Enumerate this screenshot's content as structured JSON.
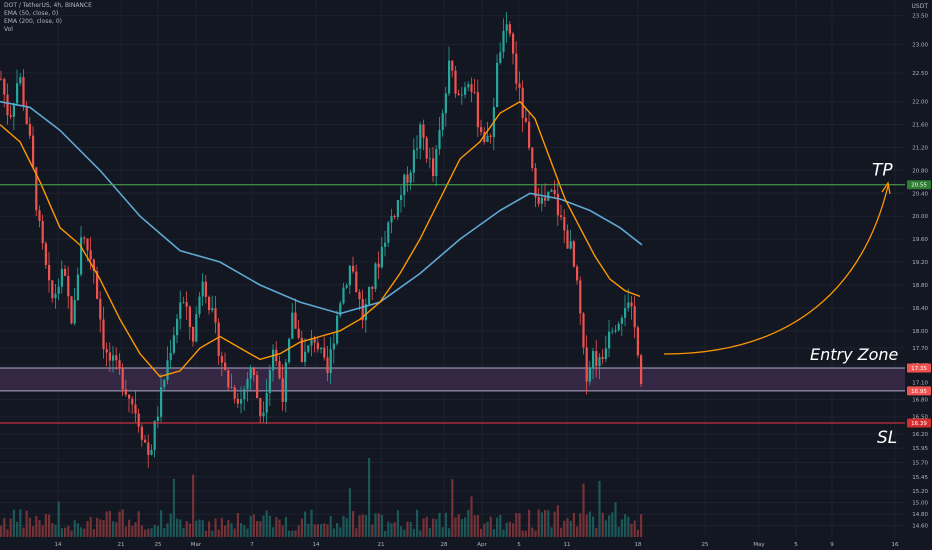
{
  "legend": {
    "symbol": "DOT / TetherUS, 4h, BINANCE",
    "ema50": "EMA (50, close, 0)",
    "ema200": "EMA (200, close, 0)",
    "vol": "Vol"
  },
  "currency": "USDT",
  "colors": {
    "background": "#131722",
    "up": "#26a69a",
    "down": "#ef5350",
    "ema50": "#ff9800",
    "ema200": "#5fa8d3",
    "tp_line": "#4caf50",
    "sl_line": "#f23645",
    "zone_fill": "#3b2a4a",
    "arrow": "#ff9800",
    "axis_text": "#b2b5be"
  },
  "chart_data": {
    "type": "candlestick",
    "y_range": [
      14.4,
      23.6
    ],
    "y_ticks": [
      "23.50",
      "23.00",
      "22.50",
      "22.00",
      "21.60",
      "21.20",
      "20.80",
      "20.40",
      "20.00",
      "19.60",
      "19.20",
      "18.80",
      "18.40",
      "18.00",
      "17.70",
      "17.40",
      "17.10",
      "16.80",
      "16.50",
      "16.20",
      "15.95",
      "15.70",
      "15.45",
      "15.20",
      "15.00",
      "14.80",
      "14.60"
    ],
    "x_ticks": [
      "14",
      "21",
      "25",
      "Mar",
      "7",
      "14",
      "21",
      "28",
      "Apr",
      "5",
      "11",
      "18",
      "25",
      "May",
      "5",
      "9",
      "16"
    ],
    "levels": {
      "tp": {
        "label": "TP",
        "value": 20.55,
        "tag": "20.55"
      },
      "entry_top": {
        "value": 17.35,
        "tag": "17.35"
      },
      "entry_bottom": {
        "value": 16.95,
        "tag": "16.95"
      },
      "sl": {
        "label": "SL",
        "value": 16.39,
        "tag": "16.39"
      }
    },
    "entry_zone_label": "Entry Zone",
    "price_path": [
      [
        0,
        22.4
      ],
      [
        8,
        21.7
      ],
      [
        18,
        22.5
      ],
      [
        28,
        21.4
      ],
      [
        38,
        19.8
      ],
      [
        50,
        18.5
      ],
      [
        62,
        19.0
      ],
      [
        72,
        18.1
      ],
      [
        80,
        19.7
      ],
      [
        92,
        19.2
      ],
      [
        104,
        17.6
      ],
      [
        120,
        17.2
      ],
      [
        135,
        16.6
      ],
      [
        148,
        15.8
      ],
      [
        158,
        16.7
      ],
      [
        168,
        17.6
      ],
      [
        180,
        18.6
      ],
      [
        192,
        17.9
      ],
      [
        202,
        19.0
      ],
      [
        214,
        18.0
      ],
      [
        226,
        17.1
      ],
      [
        240,
        16.8
      ],
      [
        250,
        17.4
      ],
      [
        260,
        16.5
      ],
      [
        272,
        17.7
      ],
      [
        282,
        16.9
      ],
      [
        292,
        18.3
      ],
      [
        302,
        17.5
      ],
      [
        314,
        17.9
      ],
      [
        326,
        17.2
      ],
      [
        338,
        18.5
      ],
      [
        350,
        19.2
      ],
      [
        362,
        18.2
      ],
      [
        374,
        19.0
      ],
      [
        386,
        19.8
      ],
      [
        398,
        20.3
      ],
      [
        410,
        20.9
      ],
      [
        420,
        21.5
      ],
      [
        432,
        20.7
      ],
      [
        442,
        21.8
      ],
      [
        448,
        22.6
      ],
      [
        458,
        22.1
      ],
      [
        468,
        22.5
      ],
      [
        478,
        21.6
      ],
      [
        488,
        21.2
      ],
      [
        498,
        22.9
      ],
      [
        508,
        23.3
      ],
      [
        516,
        22.3
      ],
      [
        524,
        21.6
      ],
      [
        532,
        20.6
      ],
      [
        542,
        20.2
      ],
      [
        552,
        20.4
      ],
      [
        560,
        19.9
      ],
      [
        570,
        19.4
      ],
      [
        578,
        18.5
      ],
      [
        584,
        17.2
      ],
      [
        592,
        17.6
      ],
      [
        600,
        17.4
      ],
      [
        608,
        18.1
      ],
      [
        616,
        18.2
      ],
      [
        624,
        18.5
      ],
      [
        632,
        18.2
      ],
      [
        638,
        17.6
      ],
      [
        642,
        16.8
      ]
    ],
    "ema50_path": [
      [
        0,
        21.6
      ],
      [
        20,
        21.3
      ],
      [
        40,
        20.6
      ],
      [
        60,
        19.8
      ],
      [
        80,
        19.5
      ],
      [
        100,
        18.9
      ],
      [
        120,
        18.2
      ],
      [
        140,
        17.6
      ],
      [
        160,
        17.2
      ],
      [
        180,
        17.3
      ],
      [
        200,
        17.7
      ],
      [
        220,
        17.9
      ],
      [
        240,
        17.7
      ],
      [
        260,
        17.5
      ],
      [
        280,
        17.6
      ],
      [
        300,
        17.8
      ],
      [
        320,
        17.9
      ],
      [
        340,
        18.0
      ],
      [
        360,
        18.2
      ],
      [
        380,
        18.5
      ],
      [
        400,
        19.0
      ],
      [
        420,
        19.6
      ],
      [
        440,
        20.3
      ],
      [
        460,
        21.0
      ],
      [
        480,
        21.3
      ],
      [
        500,
        21.8
      ],
      [
        520,
        22.0
      ],
      [
        535,
        21.7
      ],
      [
        550,
        21.0
      ],
      [
        565,
        20.3
      ],
      [
        580,
        19.8
      ],
      [
        595,
        19.3
      ],
      [
        610,
        18.9
      ],
      [
        625,
        18.7
      ],
      [
        640,
        18.6
      ]
    ],
    "ema200_path": [
      [
        0,
        22.0
      ],
      [
        30,
        21.9
      ],
      [
        60,
        21.5
      ],
      [
        100,
        20.8
      ],
      [
        140,
        20.0
      ],
      [
        180,
        19.4
      ],
      [
        220,
        19.2
      ],
      [
        260,
        18.8
      ],
      [
        300,
        18.5
      ],
      [
        340,
        18.3
      ],
      [
        380,
        18.5
      ],
      [
        420,
        19.0
      ],
      [
        460,
        19.6
      ],
      [
        500,
        20.1
      ],
      [
        530,
        20.4
      ],
      [
        560,
        20.3
      ],
      [
        590,
        20.1
      ],
      [
        620,
        19.8
      ],
      [
        642,
        19.5
      ]
    ],
    "volume_scale": 1.0
  }
}
